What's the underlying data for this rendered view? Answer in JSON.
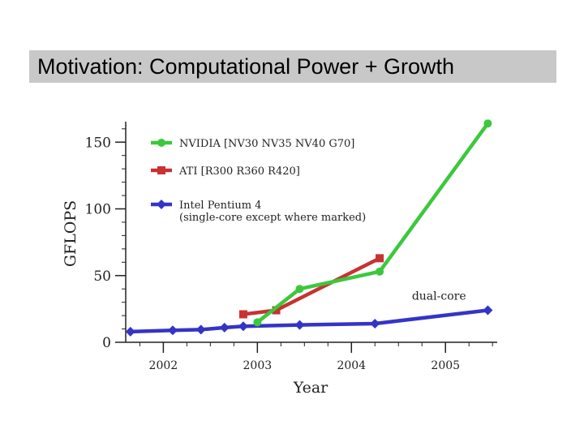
{
  "slide": {
    "title": "Motivation: Computational Power + Growth"
  },
  "chart_data": {
    "type": "line",
    "title": "",
    "xlabel": "Year",
    "ylabel": "GFLOPS",
    "xlim": [
      2001.6,
      2005.55
    ],
    "ylim": [
      0,
      165
    ],
    "x_ticks": [
      2002,
      2003,
      2004,
      2005
    ],
    "y_ticks": [
      0,
      50,
      100,
      150
    ],
    "grid": false,
    "legend_position": "top-left",
    "annotations": [
      {
        "text": "dual-core",
        "x": 2005.0,
        "y": 29
      }
    ],
    "series": [
      {
        "name": "NVIDIA [NV30 NV35 NV40 G70]",
        "color": "#3cc83c",
        "marker": "circle",
        "x": [
          2003.0,
          2003.45,
          2004.3,
          2005.45
        ],
        "y": [
          15,
          40,
          53,
          164
        ]
      },
      {
        "name": "ATI [R300 R360 R420]",
        "color": "#c83232",
        "marker": "square",
        "x": [
          2002.85,
          2003.2,
          2004.3
        ],
        "y": [
          21,
          24,
          63
        ]
      },
      {
        "name": "Intel Pentium 4",
        "name_line2": "(single-core except where marked)",
        "color": "#3434c8",
        "marker": "diamond",
        "x": [
          2001.65,
          2002.1,
          2002.4,
          2002.65,
          2002.85,
          2003.45,
          2004.25,
          2005.45
        ],
        "y": [
          8,
          9,
          9.5,
          11,
          12,
          13,
          14,
          24
        ]
      }
    ]
  }
}
